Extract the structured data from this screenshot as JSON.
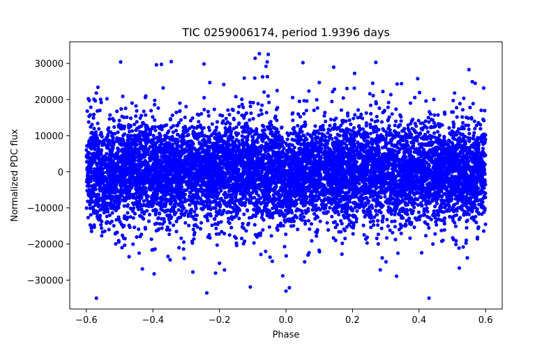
{
  "chart_data": {
    "type": "scatter",
    "title": "TIC 0259006174, period 1.9396 days",
    "xlabel": "Phase",
    "ylabel": "Normalized PDC flux",
    "xlim": [
      -0.65,
      0.65
    ],
    "ylim": [
      -38000,
      36000
    ],
    "x_ticks": [
      -0.6,
      -0.4,
      -0.2,
      0.0,
      0.2,
      0.4,
      0.6
    ],
    "x_tick_labels": [
      "−0.6",
      "−0.4",
      "−0.2",
      "0.0",
      "0.2",
      "0.4",
      "0.6"
    ],
    "y_ticks": [
      -30000,
      -20000,
      -10000,
      0,
      10000,
      20000,
      30000
    ],
    "y_tick_labels": [
      "−30000",
      "−20000",
      "−10000",
      "0",
      "10000",
      "20000",
      "30000"
    ],
    "grid": false,
    "series": [
      {
        "name": "Normalized PDC flux",
        "color": "#0000ff",
        "marker": "circle",
        "phase_range": [
          -0.6,
          0.6
        ],
        "core_sigma": 6500,
        "typical_spread": [
          -20000,
          20000
        ],
        "dip_center_phase": 0.0,
        "dip_depth": -4000,
        "notable_points": [
          {
            "x": -0.57,
            "y": -35000
          },
          {
            "x": 0.43,
            "y": -35000
          },
          {
            "x": -0.08,
            "y": 32700
          },
          {
            "x": 0.27,
            "y": 30300
          },
          {
            "x": -0.345,
            "y": 30500
          },
          {
            "x": 0.0,
            "y": -33000
          },
          {
            "x": -0.06,
            "y": 29200
          },
          {
            "x": 0.55,
            "y": 28300
          }
        ]
      }
    ]
  }
}
